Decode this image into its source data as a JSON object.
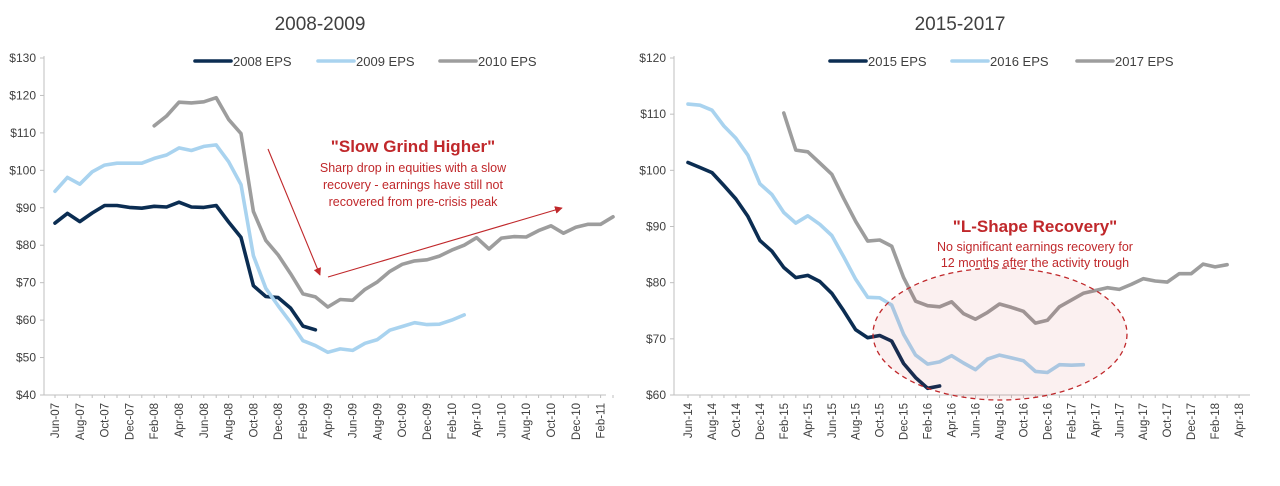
{
  "colors": {
    "navy": "#0b2d52",
    "light_blue": "#a9d3ef",
    "gray": "#9d9d9d",
    "annotation_red": "#c0282b",
    "axis": "#bfbfbf",
    "text": "#404040"
  },
  "chart_data": [
    {
      "type": "line",
      "title": "2008-2009",
      "xlabel": "",
      "ylabel": "",
      "ylim": [
        40,
        130
      ],
      "yticks": [
        40,
        50,
        60,
        70,
        80,
        90,
        100,
        110,
        120,
        130
      ],
      "y_tick_labels": [
        "$40",
        "$50",
        "$60",
        "$70",
        "$80",
        "$90",
        "$100",
        "$110",
        "$120",
        "$130"
      ],
      "x_categories": [
        "Jun-07",
        "Jul-07",
        "Aug-07",
        "Sep-07",
        "Oct-07",
        "Nov-07",
        "Dec-07",
        "Jan-08",
        "Feb-08",
        "Mar-08",
        "Apr-08",
        "May-08",
        "Jun-08",
        "Jul-08",
        "Aug-08",
        "Sep-08",
        "Oct-08",
        "Nov-08",
        "Dec-08",
        "Jan-09",
        "Feb-09",
        "Mar-09",
        "Apr-09",
        "May-09",
        "Jun-09",
        "Jul-09",
        "Aug-09",
        "Sep-09",
        "Oct-09",
        "Nov-09",
        "Dec-09",
        "Jan-10",
        "Feb-10",
        "Mar-10",
        "Apr-10",
        "May-10",
        "Jun-10",
        "Jul-10",
        "Aug-10",
        "Sep-10",
        "Oct-10",
        "Nov-10",
        "Dec-10",
        "Jan-11",
        "Feb-11",
        "Mar-11"
      ],
      "x_tick_labels": [
        "Jun-07",
        "Aug-07",
        "Oct-07",
        "Dec-07",
        "Feb-08",
        "Apr-08",
        "Jun-08",
        "Aug-08",
        "Oct-08",
        "Dec-08",
        "Feb-09",
        "Apr-09",
        "Jun-09",
        "Aug-09",
        "Oct-09",
        "Dec-09",
        "Feb-10",
        "Apr-10",
        "Jun-10",
        "Aug-10",
        "Oct-10",
        "Dec-10",
        "Feb-11"
      ],
      "legend_position": "top",
      "series": [
        {
          "name": "2008 EPS",
          "color_key": "navy",
          "start_index": 0,
          "values": [
            85.9,
            88.5,
            86.3,
            88.6,
            90.6,
            90.6,
            90.1,
            89.9,
            90.4,
            90.2,
            91.5,
            90.2,
            90.1,
            90.6,
            86.2,
            82.1,
            69.2,
            66.3,
            66.0,
            63.2,
            58.4,
            57.4
          ]
        },
        {
          "name": "2009 EPS",
          "color_key": "light_blue",
          "start_index": 0,
          "values": [
            94.4,
            98.1,
            96.3,
            99.6,
            101.4,
            101.9,
            101.9,
            101.9,
            103.2,
            104.1,
            106.0,
            105.3,
            106.4,
            106.8,
            102.3,
            96.2,
            77.2,
            68.5,
            63.8,
            59.4,
            54.5,
            53.2,
            51.4,
            52.3,
            51.9,
            53.8,
            54.8,
            57.3,
            58.3,
            59.3,
            58.8,
            58.9,
            60.0,
            61.4
          ]
        },
        {
          "name": "2010 EPS",
          "color_key": "gray",
          "start_index": 8,
          "values": [
            111.9,
            114.5,
            118.2,
            118.0,
            118.3,
            119.4,
            113.6,
            109.8,
            89.0,
            81.3,
            77.4,
            72.4,
            67.0,
            66.2,
            63.5,
            65.5,
            65.3,
            68.2,
            70.2,
            73.0,
            74.9,
            75.8,
            76.1,
            77.1,
            78.7,
            80.0,
            82.0,
            79.0,
            81.9,
            82.3,
            82.2,
            83.9,
            85.2,
            83.2,
            84.8,
            85.6,
            85.6,
            87.6
          ]
        }
      ],
      "annotations": [
        {
          "title": "\"Slow Grind Higher\"",
          "lines": [
            "Sharp drop in equities with a slow",
            "recovery - earnings have still not",
            "recovered from pre-crisis peak"
          ]
        }
      ]
    },
    {
      "type": "line",
      "title": "2015-2017",
      "xlabel": "",
      "ylabel": "",
      "ylim": [
        60,
        120
      ],
      "yticks": [
        60,
        70,
        80,
        90,
        100,
        110,
        120
      ],
      "y_tick_labels": [
        "$60",
        "$70",
        "$80",
        "$90",
        "$100",
        "$110",
        "$120"
      ],
      "x_categories": [
        "Jun-14",
        "Jul-14",
        "Aug-14",
        "Sep-14",
        "Oct-14",
        "Nov-14",
        "Dec-14",
        "Jan-15",
        "Feb-15",
        "Mar-15",
        "Apr-15",
        "May-15",
        "Jun-15",
        "Jul-15",
        "Aug-15",
        "Sep-15",
        "Oct-15",
        "Nov-15",
        "Dec-15",
        "Jan-16",
        "Feb-16",
        "Mar-16",
        "Apr-16",
        "May-16",
        "Jun-16",
        "Jul-16",
        "Aug-16",
        "Sep-16",
        "Oct-16",
        "Nov-16",
        "Dec-16",
        "Jan-17",
        "Feb-17",
        "Mar-17",
        "Apr-17",
        "May-17",
        "Jun-17",
        "Jul-17",
        "Aug-17",
        "Sep-17",
        "Oct-17",
        "Nov-17",
        "Dec-17",
        "Jan-18",
        "Feb-18",
        "Mar-18",
        "Apr-18"
      ],
      "x_tick_labels": [
        "Jun-14",
        "Aug-14",
        "Oct-14",
        "Dec-14",
        "Feb-15",
        "Apr-15",
        "Jun-15",
        "Aug-15",
        "Oct-15",
        "Dec-15",
        "Feb-16",
        "Apr-16",
        "Jun-16",
        "Aug-16",
        "Oct-16",
        "Dec-16",
        "Feb-17",
        "Apr-17",
        "Jun-17",
        "Aug-17",
        "Oct-17",
        "Dec-17",
        "Feb-18",
        "Apr-18"
      ],
      "legend_position": "top",
      "series": [
        {
          "name": "2015 EPS",
          "color_key": "navy",
          "start_index": 0,
          "values": [
            101.4,
            100.5,
            99.6,
            97.3,
            94.9,
            91.8,
            87.5,
            85.6,
            82.7,
            80.9,
            81.3,
            80.2,
            78.1,
            75.0,
            71.6,
            70.2,
            70.6,
            69.6,
            65.6,
            63.1,
            61.2,
            61.6
          ]
        },
        {
          "name": "2016 EPS",
          "color_key": "light_blue",
          "start_index": 0,
          "values": [
            111.8,
            111.6,
            110.7,
            107.9,
            105.7,
            102.7,
            97.6,
            95.7,
            92.5,
            90.6,
            91.9,
            90.4,
            88.4,
            84.6,
            80.6,
            77.4,
            77.3,
            76.0,
            70.8,
            67.1,
            65.5,
            65.9,
            67.0,
            65.7,
            64.5,
            66.4,
            67.1,
            66.6,
            66.1,
            64.2,
            64.0,
            65.4,
            65.3,
            65.4
          ]
        },
        {
          "name": "2017 EPS",
          "color_key": "gray",
          "start_index": 8,
          "values": [
            110.2,
            103.6,
            103.3,
            101.3,
            99.3,
            95.0,
            90.9,
            87.4,
            87.6,
            86.5,
            80.9,
            76.7,
            75.9,
            75.7,
            76.6,
            74.5,
            73.5,
            74.7,
            76.2,
            75.6,
            74.9,
            72.8,
            73.3,
            75.7,
            76.9,
            78.1,
            78.6,
            79.1,
            78.8,
            79.7,
            80.7,
            80.3,
            80.1,
            81.6,
            81.6,
            83.3,
            82.8,
            83.2
          ]
        }
      ],
      "annotations": [
        {
          "title": "\"L-Shape Recovery\"",
          "lines": [
            "No significant earnings recovery for",
            "12 months after the activity trough"
          ]
        }
      ]
    }
  ]
}
